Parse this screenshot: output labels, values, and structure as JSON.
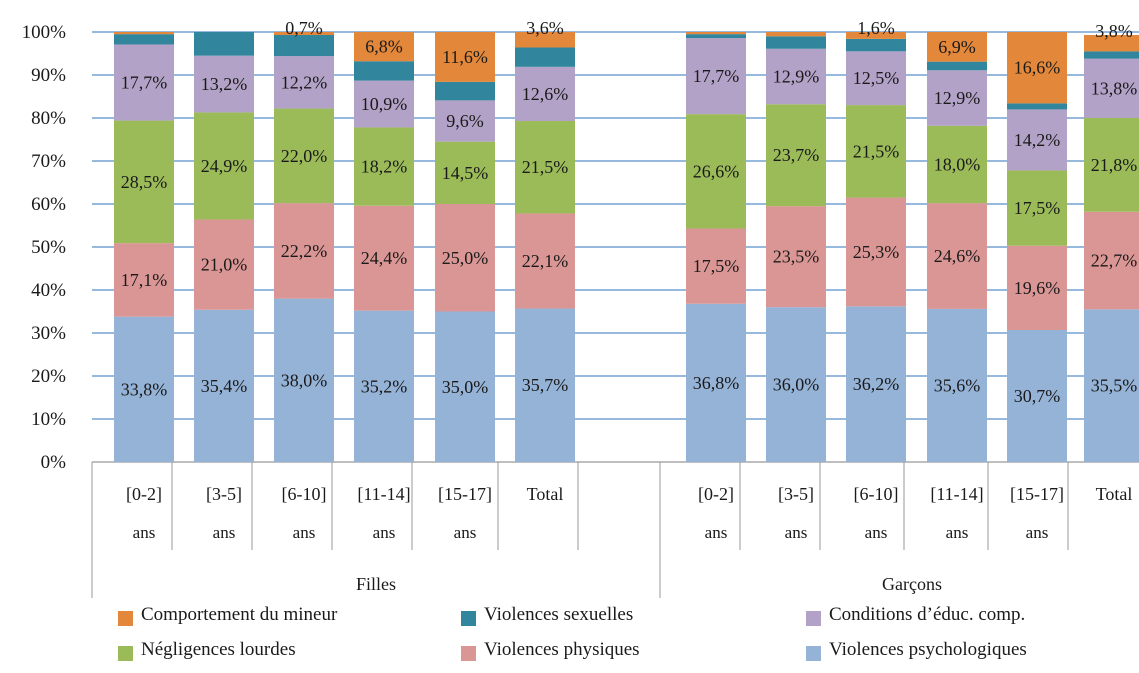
{
  "chart_data": {
    "type": "bar",
    "stacked": true,
    "normalized": true,
    "title": "",
    "xlabel": "",
    "ylabel": "",
    "ylim": [
      0,
      100
    ],
    "y_ticks": [
      "0%",
      "10%",
      "20%",
      "30%",
      "40%",
      "50%",
      "60%",
      "70%",
      "80%",
      "90%",
      "100%"
    ],
    "grid": true,
    "legend_position": "bottom",
    "groups": [
      {
        "label": "Filles",
        "categories": [
          [
            "[0-2]",
            "ans"
          ],
          [
            "[3-5]",
            "ans"
          ],
          [
            "[6-10]",
            "ans"
          ],
          [
            "[11-14]",
            "ans"
          ],
          [
            "[15-17]",
            "ans"
          ],
          [
            "Total"
          ]
        ],
        "values": [
          {
            "series": "Violences psychologiques",
            "values": [
              33.8,
              35.4,
              38.0,
              35.2,
              35.0,
              35.7
            ],
            "labels": [
              "33,8%",
              "35,4%",
              "38,0%",
              "35,2%",
              "35,0%",
              "35,7%"
            ]
          },
          {
            "series": "Violences physiques",
            "values": [
              17.1,
              21.0,
              22.2,
              24.4,
              25.0,
              22.1
            ],
            "labels": [
              "17,1%",
              "21,0%",
              "22,2%",
              "24,4%",
              "25,0%",
              "22,1%"
            ]
          },
          {
            "series": "Négligences lourdes",
            "values": [
              28.5,
              24.9,
              22.0,
              18.2,
              14.5,
              21.5
            ],
            "labels": [
              "28,5%",
              "24,9%",
              "22,0%",
              "18,2%",
              "14,5%",
              "21,5%"
            ]
          },
          {
            "series": "Conditions d’éduc. comp.",
            "values": [
              17.7,
              13.2,
              12.2,
              10.9,
              9.6,
              12.6
            ],
            "labels": [
              "17,7%",
              "13,2%",
              "12,2%",
              "10,9%",
              "9,6%",
              "12,6%"
            ]
          },
          {
            "series": "Violences sexuelles",
            "values": [
              2.4,
              5.5,
              4.9,
              4.5,
              4.3,
              4.5
            ],
            "labels": [
              "",
              "",
              "",
              "",
              "",
              ""
            ]
          },
          {
            "series": "Comportement du mineur",
            "values": [
              0.5,
              0.0,
              0.7,
              6.8,
              11.6,
              3.6
            ],
            "labels": [
              "",
              "",
              "0,7%",
              "6,8%",
              "11,6%",
              "3,6%"
            ]
          }
        ]
      },
      {
        "label": "Garçons",
        "categories": [
          [
            "[0-2]",
            "ans"
          ],
          [
            "[3-5]",
            "ans"
          ],
          [
            "[6-10]",
            "ans"
          ],
          [
            "[11-14]",
            "ans"
          ],
          [
            "[15-17]",
            "ans"
          ],
          [
            "Total"
          ]
        ],
        "values": [
          {
            "series": "Violences psychologiques",
            "values": [
              36.8,
              36.0,
              36.2,
              35.6,
              30.7,
              35.5
            ],
            "labels": [
              "36,8%",
              "36,0%",
              "36,2%",
              "35,6%",
              "30,7%",
              "35,5%"
            ]
          },
          {
            "series": "Violences physiques",
            "values": [
              17.5,
              23.5,
              25.3,
              24.6,
              19.6,
              22.7
            ],
            "labels": [
              "17,5%",
              "23,5%",
              "25,3%",
              "24,6%",
              "19,6%",
              "22,7%"
            ]
          },
          {
            "series": "Négligences lourdes",
            "values": [
              26.6,
              23.7,
              21.5,
              18.0,
              17.5,
              21.8
            ],
            "labels": [
              "26,6%",
              "23,7%",
              "21,5%",
              "18,0%",
              "17,5%",
              "21,8%"
            ]
          },
          {
            "series": "Conditions d’éduc. comp.",
            "values": [
              17.7,
              12.9,
              12.5,
              12.9,
              14.2,
              13.8
            ],
            "labels": [
              "17,7%",
              "12,9%",
              "12,5%",
              "12,9%",
              "14,2%",
              "13,8%"
            ]
          },
          {
            "series": "Violences sexuelles",
            "values": [
              0.9,
              2.9,
              2.9,
              2.0,
              1.4,
              1.7
            ],
            "labels": [
              "",
              "",
              "",
              "",
              "",
              ""
            ]
          },
          {
            "series": "Comportement du mineur",
            "values": [
              0.5,
              1.0,
              1.6,
              6.9,
              16.6,
              3.8
            ],
            "labels": [
              "",
              "",
              "1,6%",
              "6,9%",
              "16,6%",
              "3,8%"
            ]
          }
        ]
      }
    ],
    "series_styles": [
      {
        "name": "Violences psychologiques",
        "color": "#95b3d7"
      },
      {
        "name": "Violences physiques",
        "color": "#da9694"
      },
      {
        "name": "Négligences lourdes",
        "color": "#9bbb59"
      },
      {
        "name": "Conditions d’éduc. comp.",
        "color": "#b3a2c7"
      },
      {
        "name": "Violences sexuelles",
        "color": "#31859c"
      },
      {
        "name": "Comportement du mineur",
        "color": "#e3883a"
      }
    ]
  },
  "legend": {
    "items": [
      {
        "label": "Comportement du mineur",
        "color": "#e3883a"
      },
      {
        "label": "Violences sexuelles",
        "color": "#31859c"
      },
      {
        "label": "Conditions d’éduc. comp.",
        "color": "#b3a2c7"
      },
      {
        "label": "Négligences lourdes",
        "color": "#9bbb59"
      },
      {
        "label": "Violences physiques",
        "color": "#da9694"
      },
      {
        "label": "Violences psychologiques",
        "color": "#95b3d7"
      }
    ]
  },
  "colors": {
    "gridline": "#5b8fc9",
    "axis": "#999999",
    "text": "#1a1a1a"
  }
}
